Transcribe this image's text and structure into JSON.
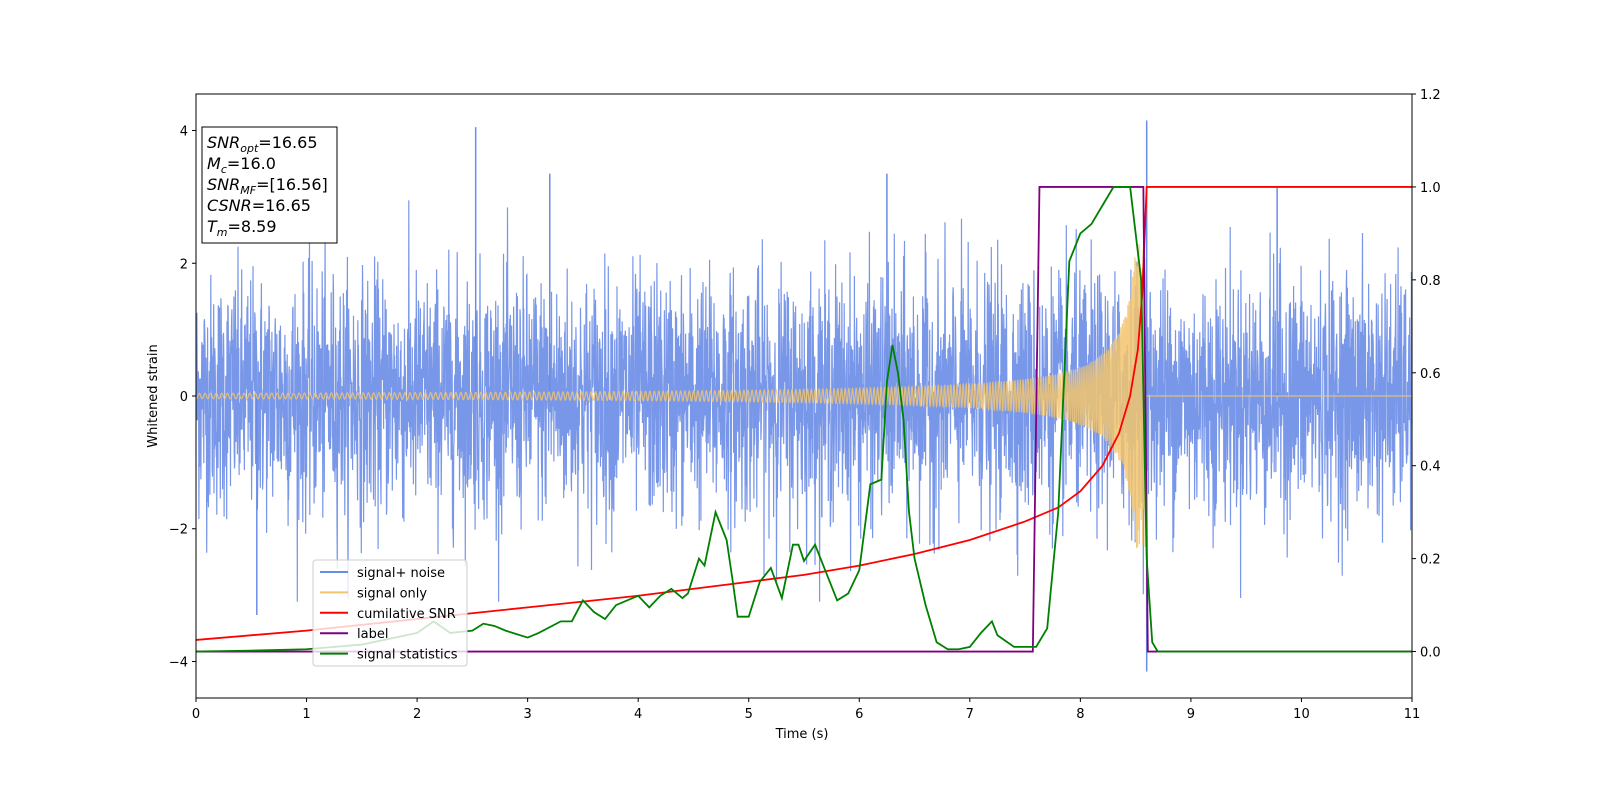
{
  "chart_data": {
    "type": "line",
    "xlabel": "Time (s)",
    "ylabel": "Whitened strain",
    "xlim": [
      0,
      11
    ],
    "ylim": [
      -4.55,
      4.55
    ],
    "y2lim": [
      -0.1,
      1.2
    ],
    "xticks": [
      0,
      1,
      2,
      3,
      4,
      5,
      6,
      7,
      8,
      9,
      10,
      11
    ],
    "yticks": [
      -4,
      -2,
      0,
      2,
      4
    ],
    "y2ticks": [
      0.0,
      0.2,
      0.4,
      0.6,
      0.8,
      1.0,
      1.2
    ],
    "grid": false,
    "legend_position": "lower-left",
    "info_box": [
      {
        "base": "SNR",
        "sub": "opt",
        "value": "=16.65"
      },
      {
        "base": "M",
        "sub": "c",
        "value": "=16.0"
      },
      {
        "base": "SNR",
        "sub": "MF",
        "value": "=[16.56]"
      },
      {
        "base": "CSNR",
        "sub": "",
        "value": "=16.65"
      },
      {
        "base": "T",
        "sub": "m",
        "value": "=8.59"
      }
    ],
    "series": [
      {
        "name": "signal+ noise",
        "color": "#6a8ce6",
        "axis": "left",
        "noise_std": 0.9,
        "peaks": [
          [
            2.53,
            4.05
          ],
          [
            8.6,
            4.15
          ],
          [
            8.6,
            -4.15
          ],
          [
            9.78,
            3.15
          ],
          [
            3.2,
            3.35
          ],
          [
            0.55,
            -3.3
          ],
          [
            6.25,
            3.35
          ]
        ]
      },
      {
        "name": "signal only",
        "color": "#f2c46d",
        "axis": "left",
        "chirp_end": 8.59,
        "amplitude_start": 0.04,
        "amplitude_peak": 2.3
      },
      {
        "name": "cumilative SNR",
        "color": "#ff0000",
        "axis": "right",
        "x": [
          0,
          1,
          2,
          3,
          4,
          5,
          5.5,
          6,
          6.5,
          7,
          7.5,
          7.8,
          8.0,
          8.2,
          8.35,
          8.45,
          8.52,
          8.56,
          8.6,
          11
        ],
        "y": [
          0.025,
          0.045,
          0.07,
          0.095,
          0.12,
          0.15,
          0.165,
          0.185,
          0.21,
          0.24,
          0.28,
          0.31,
          0.345,
          0.4,
          0.47,
          0.55,
          0.65,
          0.77,
          1.0,
          1.0
        ]
      },
      {
        "name": "label",
        "color": "#800080",
        "axis": "right",
        "x": [
          0,
          7.57,
          7.63,
          8.57,
          8.61,
          11
        ],
        "y": [
          0,
          0,
          1,
          1,
          0,
          0
        ]
      },
      {
        "name": "signal statistics",
        "color": "#008000",
        "axis": "right",
        "x": [
          0,
          0.5,
          1.0,
          1.5,
          1.8,
          2.0,
          2.15,
          2.3,
          2.5,
          2.6,
          2.7,
          2.8,
          3.0,
          3.1,
          3.3,
          3.4,
          3.5,
          3.6,
          3.7,
          3.8,
          4.0,
          4.1,
          4.2,
          4.3,
          4.4,
          4.45,
          4.55,
          4.6,
          4.7,
          4.8,
          4.85,
          4.9,
          5.0,
          5.1,
          5.2,
          5.3,
          5.4,
          5.45,
          5.5,
          5.6,
          5.7,
          5.8,
          5.9,
          6.0,
          6.1,
          6.2,
          6.25,
          6.3,
          6.35,
          6.4,
          6.45,
          6.5,
          6.6,
          6.7,
          6.8,
          6.9,
          7.0,
          7.1,
          7.2,
          7.25,
          7.4,
          7.6,
          7.7,
          7.8,
          7.9,
          8.0,
          8.1,
          8.2,
          8.3,
          8.45,
          8.55,
          8.6,
          8.65,
          8.7,
          9.0,
          11
        ],
        "y": [
          0.0,
          0.002,
          0.005,
          0.015,
          0.03,
          0.04,
          0.065,
          0.04,
          0.045,
          0.06,
          0.055,
          0.045,
          0.03,
          0.04,
          0.065,
          0.065,
          0.11,
          0.085,
          0.07,
          0.1,
          0.12,
          0.095,
          0.12,
          0.135,
          0.115,
          0.125,
          0.2,
          0.185,
          0.3,
          0.24,
          0.16,
          0.075,
          0.075,
          0.15,
          0.18,
          0.115,
          0.23,
          0.23,
          0.195,
          0.23,
          0.17,
          0.11,
          0.125,
          0.175,
          0.36,
          0.37,
          0.58,
          0.66,
          0.6,
          0.5,
          0.3,
          0.2,
          0.1,
          0.02,
          0.005,
          0.005,
          0.01,
          0.04,
          0.065,
          0.035,
          0.01,
          0.01,
          0.05,
          0.3,
          0.84,
          0.9,
          0.92,
          0.96,
          1.0,
          1.0,
          0.8,
          0.2,
          0.02,
          0.0,
          0.0,
          0.0
        ]
      }
    ]
  }
}
